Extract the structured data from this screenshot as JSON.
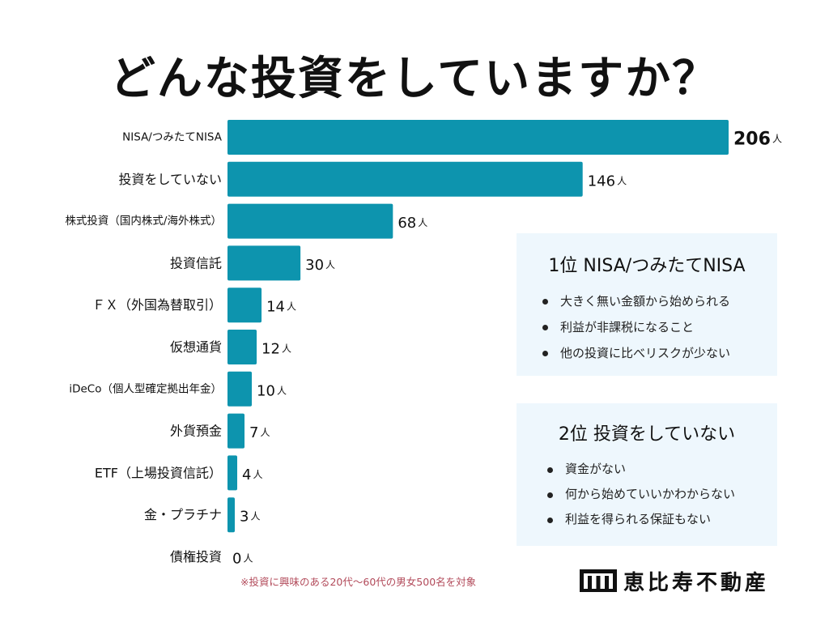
{
  "title": "どんな投資をしていますか？",
  "chart_data": {
    "type": "bar",
    "orientation": "horizontal",
    "title": "どんな投資をしていますか？",
    "categories": [
      "NISA/つみたてNISA",
      "投資をしていない",
      "株式投資（国内株式/海外株式）",
      "投資信託",
      "ＦＸ（外国為替取引）",
      "仮想通貨",
      "iDeCo（個人型確定拠出年金）",
      "外貨預金",
      "ETF（上場投資信託）",
      "金・プラチナ",
      "債権投資"
    ],
    "values": [
      206,
      146,
      68,
      30,
      14,
      12,
      10,
      7,
      4,
      3,
      0
    ],
    "unit": "人",
    "bar_color": "#0d94ae",
    "grid": false,
    "legend": "none"
  },
  "panels": [
    {
      "title": "1位 NISA/つみたてNISA",
      "items": [
        "大きく無い金額から始められる",
        "利益が非課税になること",
        "他の投資に比べリスクが少ない"
      ]
    },
    {
      "title": "2位 投資をしていない",
      "items": [
        "資金がない",
        "何から始めていいかわからない",
        "利益を得られる保証もない"
      ]
    }
  ],
  "footnote": "※投資に興味のある20代〜60代の男女500名を対象",
  "logo": {
    "text": "恵比寿不動産",
    "icon": "building-logo-icon"
  },
  "colors": {
    "bar": "#0d94ae",
    "panel_bg": "#eef7fd",
    "footnote": "#b24a5a"
  }
}
